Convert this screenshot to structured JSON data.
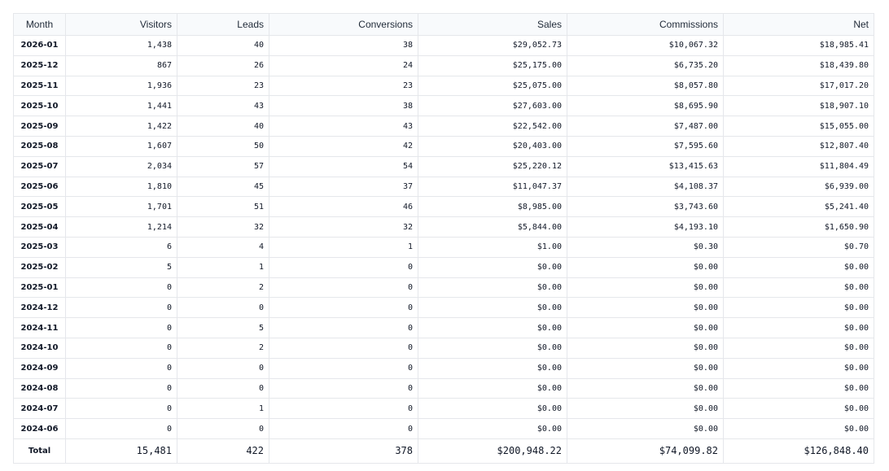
{
  "table": {
    "columns": [
      "Month",
      "Visitors",
      "Leads",
      "Conversions",
      "Sales",
      "Commissions",
      "Net"
    ],
    "rows": [
      {
        "month": "2026-01",
        "visitors": "1,438",
        "leads": "40",
        "conversions": "38",
        "sales": "$29,052.73",
        "commissions": "$10,067.32",
        "net": "$18,985.41"
      },
      {
        "month": "2025-12",
        "visitors": "867",
        "leads": "26",
        "conversions": "24",
        "sales": "$25,175.00",
        "commissions": "$6,735.20",
        "net": "$18,439.80"
      },
      {
        "month": "2025-11",
        "visitors": "1,936",
        "leads": "23",
        "conversions": "23",
        "sales": "$25,075.00",
        "commissions": "$8,057.80",
        "net": "$17,017.20"
      },
      {
        "month": "2025-10",
        "visitors": "1,441",
        "leads": "43",
        "conversions": "38",
        "sales": "$27,603.00",
        "commissions": "$8,695.90",
        "net": "$18,907.10"
      },
      {
        "month": "2025-09",
        "visitors": "1,422",
        "leads": "40",
        "conversions": "43",
        "sales": "$22,542.00",
        "commissions": "$7,487.00",
        "net": "$15,055.00"
      },
      {
        "month": "2025-08",
        "visitors": "1,607",
        "leads": "50",
        "conversions": "42",
        "sales": "$20,403.00",
        "commissions": "$7,595.60",
        "net": "$12,807.40"
      },
      {
        "month": "2025-07",
        "visitors": "2,034",
        "leads": "57",
        "conversions": "54",
        "sales": "$25,220.12",
        "commissions": "$13,415.63",
        "net": "$11,804.49"
      },
      {
        "month": "2025-06",
        "visitors": "1,810",
        "leads": "45",
        "conversions": "37",
        "sales": "$11,047.37",
        "commissions": "$4,108.37",
        "net": "$6,939.00"
      },
      {
        "month": "2025-05",
        "visitors": "1,701",
        "leads": "51",
        "conversions": "46",
        "sales": "$8,985.00",
        "commissions": "$3,743.60",
        "net": "$5,241.40"
      },
      {
        "month": "2025-04",
        "visitors": "1,214",
        "leads": "32",
        "conversions": "32",
        "sales": "$5,844.00",
        "commissions": "$4,193.10",
        "net": "$1,650.90"
      },
      {
        "month": "2025-03",
        "visitors": "6",
        "leads": "4",
        "conversions": "1",
        "sales": "$1.00",
        "commissions": "$0.30",
        "net": "$0.70"
      },
      {
        "month": "2025-02",
        "visitors": "5",
        "leads": "1",
        "conversions": "0",
        "sales": "$0.00",
        "commissions": "$0.00",
        "net": "$0.00"
      },
      {
        "month": "2025-01",
        "visitors": "0",
        "leads": "2",
        "conversions": "0",
        "sales": "$0.00",
        "commissions": "$0.00",
        "net": "$0.00"
      },
      {
        "month": "2024-12",
        "visitors": "0",
        "leads": "0",
        "conversions": "0",
        "sales": "$0.00",
        "commissions": "$0.00",
        "net": "$0.00"
      },
      {
        "month": "2024-11",
        "visitors": "0",
        "leads": "5",
        "conversions": "0",
        "sales": "$0.00",
        "commissions": "$0.00",
        "net": "$0.00"
      },
      {
        "month": "2024-10",
        "visitors": "0",
        "leads": "2",
        "conversions": "0",
        "sales": "$0.00",
        "commissions": "$0.00",
        "net": "$0.00"
      },
      {
        "month": "2024-09",
        "visitors": "0",
        "leads": "0",
        "conversions": "0",
        "sales": "$0.00",
        "commissions": "$0.00",
        "net": "$0.00"
      },
      {
        "month": "2024-08",
        "visitors": "0",
        "leads": "0",
        "conversions": "0",
        "sales": "$0.00",
        "commissions": "$0.00",
        "net": "$0.00"
      },
      {
        "month": "2024-07",
        "visitors": "0",
        "leads": "1",
        "conversions": "0",
        "sales": "$0.00",
        "commissions": "$0.00",
        "net": "$0.00"
      },
      {
        "month": "2024-06",
        "visitors": "0",
        "leads": "0",
        "conversions": "0",
        "sales": "$0.00",
        "commissions": "$0.00",
        "net": "$0.00"
      }
    ],
    "total": {
      "label": "Total",
      "visitors": "15,481",
      "leads": "422",
      "conversions": "378",
      "sales": "$200,948.22",
      "commissions": "$74,099.82",
      "net": "$126,848.40"
    }
  }
}
